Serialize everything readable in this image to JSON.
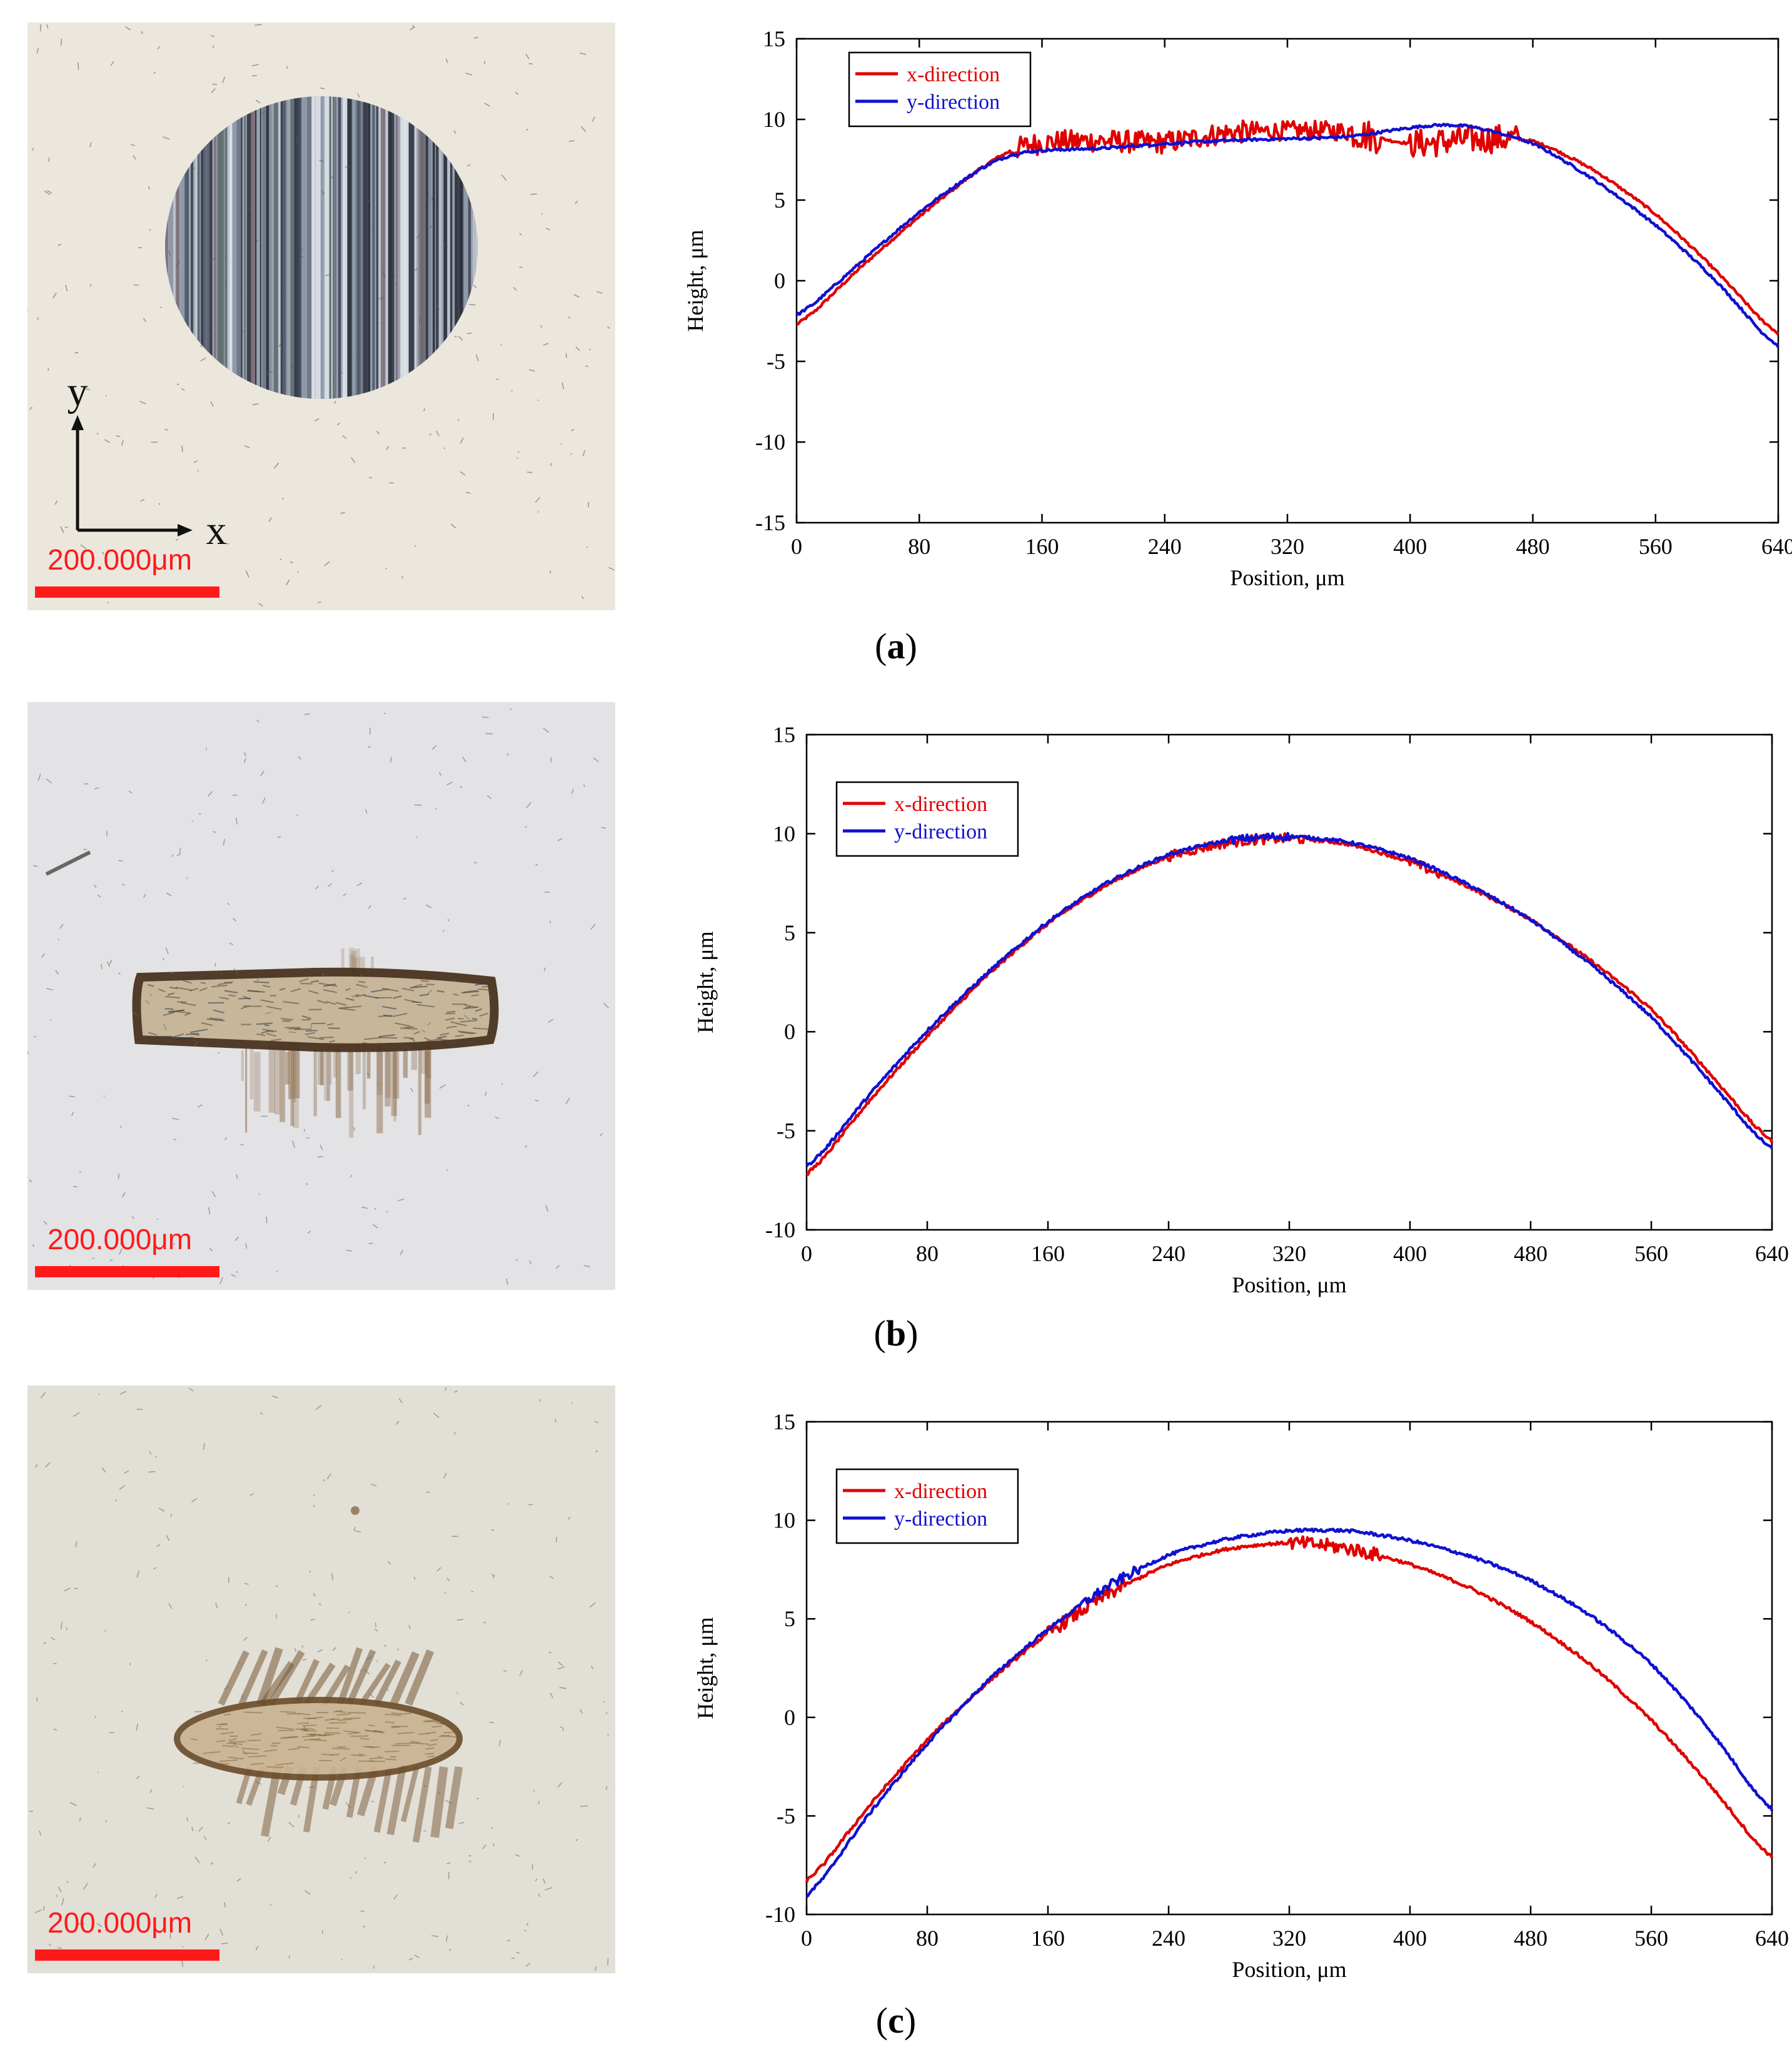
{
  "panels": [
    {
      "id": "a",
      "caption_label": "a",
      "scale_label": "200.000μm",
      "axis_x_label": "x",
      "axis_y_label": "y",
      "wear_scar": "circular scar with vertical scratches",
      "colors": {
        "background": "#ece7dd",
        "scar_dark": "#3a3d4a",
        "scar_light": "#c9cfd8"
      }
    },
    {
      "id": "b",
      "caption_label": "b",
      "scale_label": "200.000μm",
      "wear_scar": "elongated horizontal band scar",
      "colors": {
        "background": "#e3e2e4",
        "scar_dark": "#5a4530",
        "scar_light": "#c0aa8a"
      }
    },
    {
      "id": "c",
      "caption_label": "c",
      "scale_label": "200.000μm",
      "wear_scar": "elliptical scar with diagonal streaks",
      "colors": {
        "background": "#e2dfd7",
        "scar_dark": "#6a5030",
        "scar_light": "#bfa27a"
      }
    }
  ],
  "chart_data": [
    {
      "type": "line",
      "panel": "a",
      "xlabel": "Position, μm",
      "ylabel": "Height, μm",
      "xlim": [
        0,
        640
      ],
      "ylim": [
        -15,
        15
      ],
      "xticks": [
        0,
        80,
        160,
        240,
        320,
        400,
        480,
        560,
        640
      ],
      "yticks": [
        -15,
        -10,
        -5,
        0,
        5,
        10,
        15
      ],
      "legend": "top-left",
      "series": [
        {
          "name": "x-direction",
          "color": "#e00000",
          "x": [
            0,
            40,
            80,
            120,
            140,
            160,
            200,
            240,
            280,
            320,
            360,
            400,
            440,
            480,
            520,
            560,
            600,
            640
          ],
          "y": [
            -3.0,
            0.7,
            4.0,
            7.0,
            8.2,
            8.6,
            8.7,
            8.5,
            9.2,
            9.3,
            9.3,
            8.4,
            8.8,
            8.8,
            6.9,
            4.2,
            0.6,
            -3.6
          ],
          "noise": [
            [
              140,
              300,
              0.7
            ],
            [
              300,
              360,
              0.6
            ],
            [
              360,
              380,
              1.0
            ],
            [
              400,
              470,
              0.9
            ]
          ]
        },
        {
          "name": "y-direction",
          "color": "#1010d0",
          "x": [
            0,
            40,
            80,
            120,
            140,
            160,
            200,
            240,
            280,
            320,
            360,
            400,
            420,
            440,
            480,
            520,
            560,
            600,
            640
          ],
          "y": [
            -2.4,
            1.0,
            4.3,
            7.0,
            7.9,
            8.1,
            8.2,
            8.5,
            8.7,
            8.8,
            8.9,
            9.5,
            9.7,
            9.6,
            8.6,
            6.3,
            3.5,
            0.0,
            -4.4
          ],
          "noise": []
        }
      ]
    },
    {
      "type": "line",
      "panel": "b",
      "xlabel": "Position, μm",
      "ylabel": "Height, μm",
      "xlim": [
        0,
        640
      ],
      "ylim": [
        -10,
        15
      ],
      "xticks": [
        0,
        80,
        160,
        240,
        320,
        400,
        480,
        560,
        640
      ],
      "yticks": [
        -10,
        -5,
        0,
        5,
        10,
        15
      ],
      "legend": "top-left",
      "series": [
        {
          "name": "x-direction",
          "color": "#e00000",
          "x": [
            0,
            40,
            80,
            120,
            160,
            200,
            240,
            280,
            320,
            360,
            400,
            440,
            480,
            520,
            560,
            600,
            640
          ],
          "y": [
            -7.5,
            -3.6,
            -0.2,
            2.9,
            5.5,
            7.5,
            8.9,
            9.6,
            9.8,
            9.5,
            8.6,
            7.3,
            5.7,
            3.6,
            1.2,
            -2.2,
            -5.8
          ],
          "noise": [
            [
              240,
              330,
              0.25
            ],
            [
              400,
              420,
              0.25
            ]
          ]
        },
        {
          "name": "y-direction",
          "color": "#1010d0",
          "x": [
            0,
            40,
            80,
            120,
            160,
            200,
            240,
            280,
            320,
            360,
            400,
            440,
            480,
            520,
            560,
            600,
            640
          ],
          "y": [
            -7.1,
            -3.3,
            0.1,
            3.0,
            5.6,
            7.6,
            9.0,
            9.7,
            9.9,
            9.6,
            8.8,
            7.4,
            5.7,
            3.4,
            0.8,
            -2.6,
            -6.2
          ],
          "noise": [
            [
              280,
              320,
              0.2
            ]
          ]
        }
      ]
    },
    {
      "type": "line",
      "panel": "c",
      "xlabel": "Position, μm",
      "ylabel": "Height, μm",
      "xlim": [
        0,
        640
      ],
      "ylim": [
        -10,
        15
      ],
      "xticks": [
        0,
        80,
        160,
        240,
        320,
        400,
        480,
        560,
        640
      ],
      "yticks": [
        -10,
        -5,
        0,
        5,
        10,
        15
      ],
      "legend": "top-left",
      "series": [
        {
          "name": "x-direction",
          "color": "#e00000",
          "x": [
            0,
            40,
            80,
            120,
            160,
            200,
            240,
            280,
            320,
            360,
            400,
            440,
            480,
            520,
            560,
            600,
            640
          ],
          "y": [
            -8.6,
            -4.6,
            -1.1,
            1.8,
            4.3,
            6.3,
            7.8,
            8.6,
            8.9,
            8.6,
            7.8,
            6.6,
            4.9,
            2.7,
            -0.1,
            -3.5,
            -7.4
          ],
          "noise": [
            [
              160,
              210,
              0.35
            ],
            [
              320,
              380,
              0.35
            ]
          ]
        },
        {
          "name": "y-direction",
          "color": "#1010d0",
          "x": [
            0,
            40,
            80,
            120,
            160,
            200,
            240,
            280,
            320,
            360,
            400,
            440,
            480,
            520,
            560,
            600,
            640
          ],
          "y": [
            -9.4,
            -5.0,
            -1.3,
            1.9,
            4.5,
            6.7,
            8.3,
            9.1,
            9.5,
            9.5,
            9.0,
            8.2,
            7.0,
            5.2,
            2.8,
            -0.7,
            -5.0
          ],
          "noise": [
            [
              180,
              220,
              0.25
            ]
          ]
        }
      ]
    }
  ]
}
